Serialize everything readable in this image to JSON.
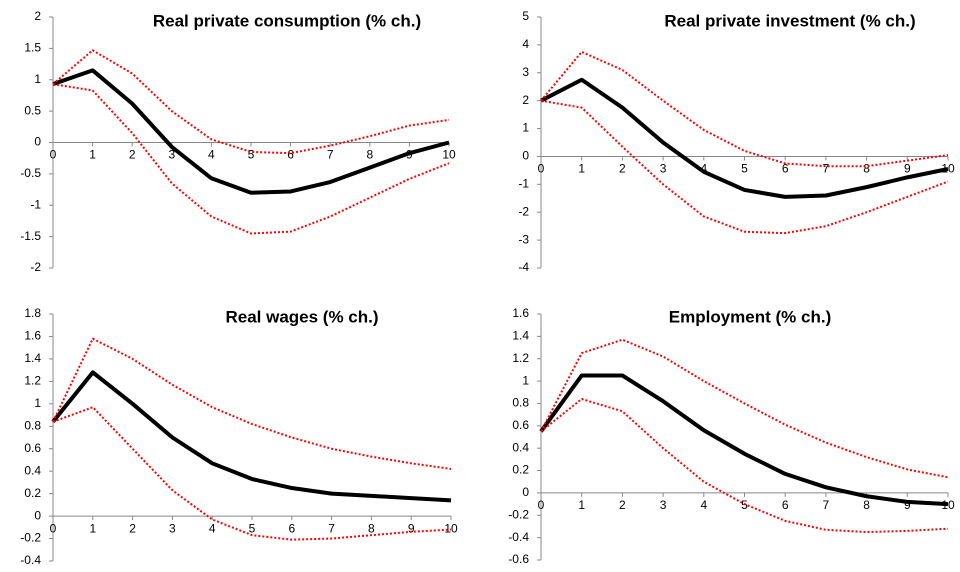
{
  "chart_data": [
    {
      "type": "line",
      "title": "Real private consumption (% ch.)",
      "x": [
        0,
        1,
        2,
        3,
        4,
        5,
        6,
        7,
        8,
        9,
        10
      ],
      "xlim": [
        0,
        10
      ],
      "xticks": [
        0,
        1,
        2,
        3,
        4,
        5,
        6,
        7,
        8,
        9,
        10
      ],
      "ylim": [
        -2,
        2
      ],
      "yticks": [
        2,
        1.5,
        1,
        0.5,
        0,
        -0.5,
        -1,
        -1.5,
        -2
      ],
      "series": [
        {
          "color": "#000000",
          "line_style": "solid",
          "values": [
            0.93,
            1.15,
            0.62,
            -0.07,
            -0.57,
            -0.8,
            -0.78,
            -0.63,
            -0.4,
            -0.17,
            0.0
          ]
        },
        {
          "color": "#ff0000",
          "line_style": "dotted",
          "values": [
            0.93,
            1.47,
            1.1,
            0.5,
            0.05,
            -0.15,
            -0.17,
            -0.05,
            0.1,
            0.27,
            0.36
          ]
        },
        {
          "color": "#ff0000",
          "line_style": "dotted",
          "values": [
            0.93,
            0.83,
            0.15,
            -0.65,
            -1.18,
            -1.45,
            -1.42,
            -1.18,
            -0.88,
            -0.58,
            -0.33
          ]
        }
      ]
    },
    {
      "type": "line",
      "title": "Real private investment (% ch.)",
      "x": [
        0,
        1,
        2,
        3,
        4,
        5,
        6,
        7,
        8,
        9,
        10
      ],
      "xlim": [
        0,
        10
      ],
      "xticks": [
        0,
        1,
        2,
        3,
        4,
        5,
        6,
        7,
        8,
        9,
        10
      ],
      "ylim": [
        -4,
        5
      ],
      "yticks": [
        5,
        4,
        3,
        2,
        1,
        0,
        -1,
        -2,
        -3,
        -4
      ],
      "series": [
        {
          "color": "#000000",
          "line_style": "solid",
          "values": [
            2.0,
            2.75,
            1.75,
            0.5,
            -0.55,
            -1.2,
            -1.45,
            -1.4,
            -1.1,
            -0.75,
            -0.45
          ]
        },
        {
          "color": "#ff0000",
          "line_style": "dotted",
          "values": [
            2.0,
            3.75,
            3.1,
            2.0,
            0.95,
            0.2,
            -0.25,
            -0.35,
            -0.35,
            -0.15,
            0.05
          ]
        },
        {
          "color": "#ff0000",
          "line_style": "dotted",
          "values": [
            2.0,
            1.75,
            0.35,
            -1.0,
            -2.15,
            -2.7,
            -2.75,
            -2.5,
            -2.0,
            -1.45,
            -0.9
          ]
        }
      ]
    },
    {
      "type": "line",
      "title": "Real wages (% ch.)",
      "x": [
        0,
        1,
        2,
        3,
        4,
        5,
        6,
        7,
        8,
        9,
        10
      ],
      "xlim": [
        0,
        10
      ],
      "xticks": [
        0,
        1,
        2,
        3,
        4,
        5,
        6,
        7,
        8,
        9,
        10
      ],
      "ylim": [
        -0.4,
        1.8
      ],
      "yticks": [
        1.8,
        1.6,
        1.4,
        1.2,
        1,
        0.8,
        0.6,
        0.4,
        0.2,
        0,
        -0.2,
        -0.4
      ],
      "series": [
        {
          "color": "#000000",
          "line_style": "solid",
          "values": [
            0.84,
            1.28,
            1.0,
            0.7,
            0.47,
            0.33,
            0.25,
            0.2,
            0.18,
            0.16,
            0.14
          ]
        },
        {
          "color": "#ff0000",
          "line_style": "dotted",
          "values": [
            0.84,
            1.58,
            1.4,
            1.17,
            0.97,
            0.82,
            0.7,
            0.6,
            0.53,
            0.47,
            0.42
          ]
        },
        {
          "color": "#ff0000",
          "line_style": "dotted",
          "values": [
            0.84,
            0.97,
            0.6,
            0.23,
            -0.03,
            -0.17,
            -0.21,
            -0.2,
            -0.17,
            -0.14,
            -0.12
          ]
        }
      ]
    },
    {
      "type": "line",
      "title": "Employment (% ch.)",
      "x": [
        0,
        1,
        2,
        3,
        4,
        5,
        6,
        7,
        8,
        9,
        10
      ],
      "xlim": [
        0,
        10
      ],
      "xticks": [
        0,
        1,
        2,
        3,
        4,
        5,
        6,
        7,
        8,
        9,
        10
      ],
      "ylim": [
        -0.6,
        1.6
      ],
      "yticks": [
        1.6,
        1.4,
        1.2,
        1,
        0.8,
        0.6,
        0.4,
        0.2,
        0,
        -0.2,
        -0.4,
        -0.6
      ],
      "series": [
        {
          "color": "#000000",
          "line_style": "solid",
          "values": [
            0.55,
            1.05,
            1.05,
            0.82,
            0.56,
            0.35,
            0.17,
            0.05,
            -0.03,
            -0.08,
            -0.1
          ]
        },
        {
          "color": "#ff0000",
          "line_style": "dotted",
          "values": [
            0.55,
            1.25,
            1.37,
            1.22,
            1.0,
            0.8,
            0.61,
            0.45,
            0.32,
            0.21,
            0.14
          ]
        },
        {
          "color": "#ff0000",
          "line_style": "dotted",
          "values": [
            0.55,
            0.84,
            0.73,
            0.4,
            0.1,
            -0.1,
            -0.25,
            -0.33,
            -0.35,
            -0.34,
            -0.32
          ]
        }
      ]
    }
  ]
}
